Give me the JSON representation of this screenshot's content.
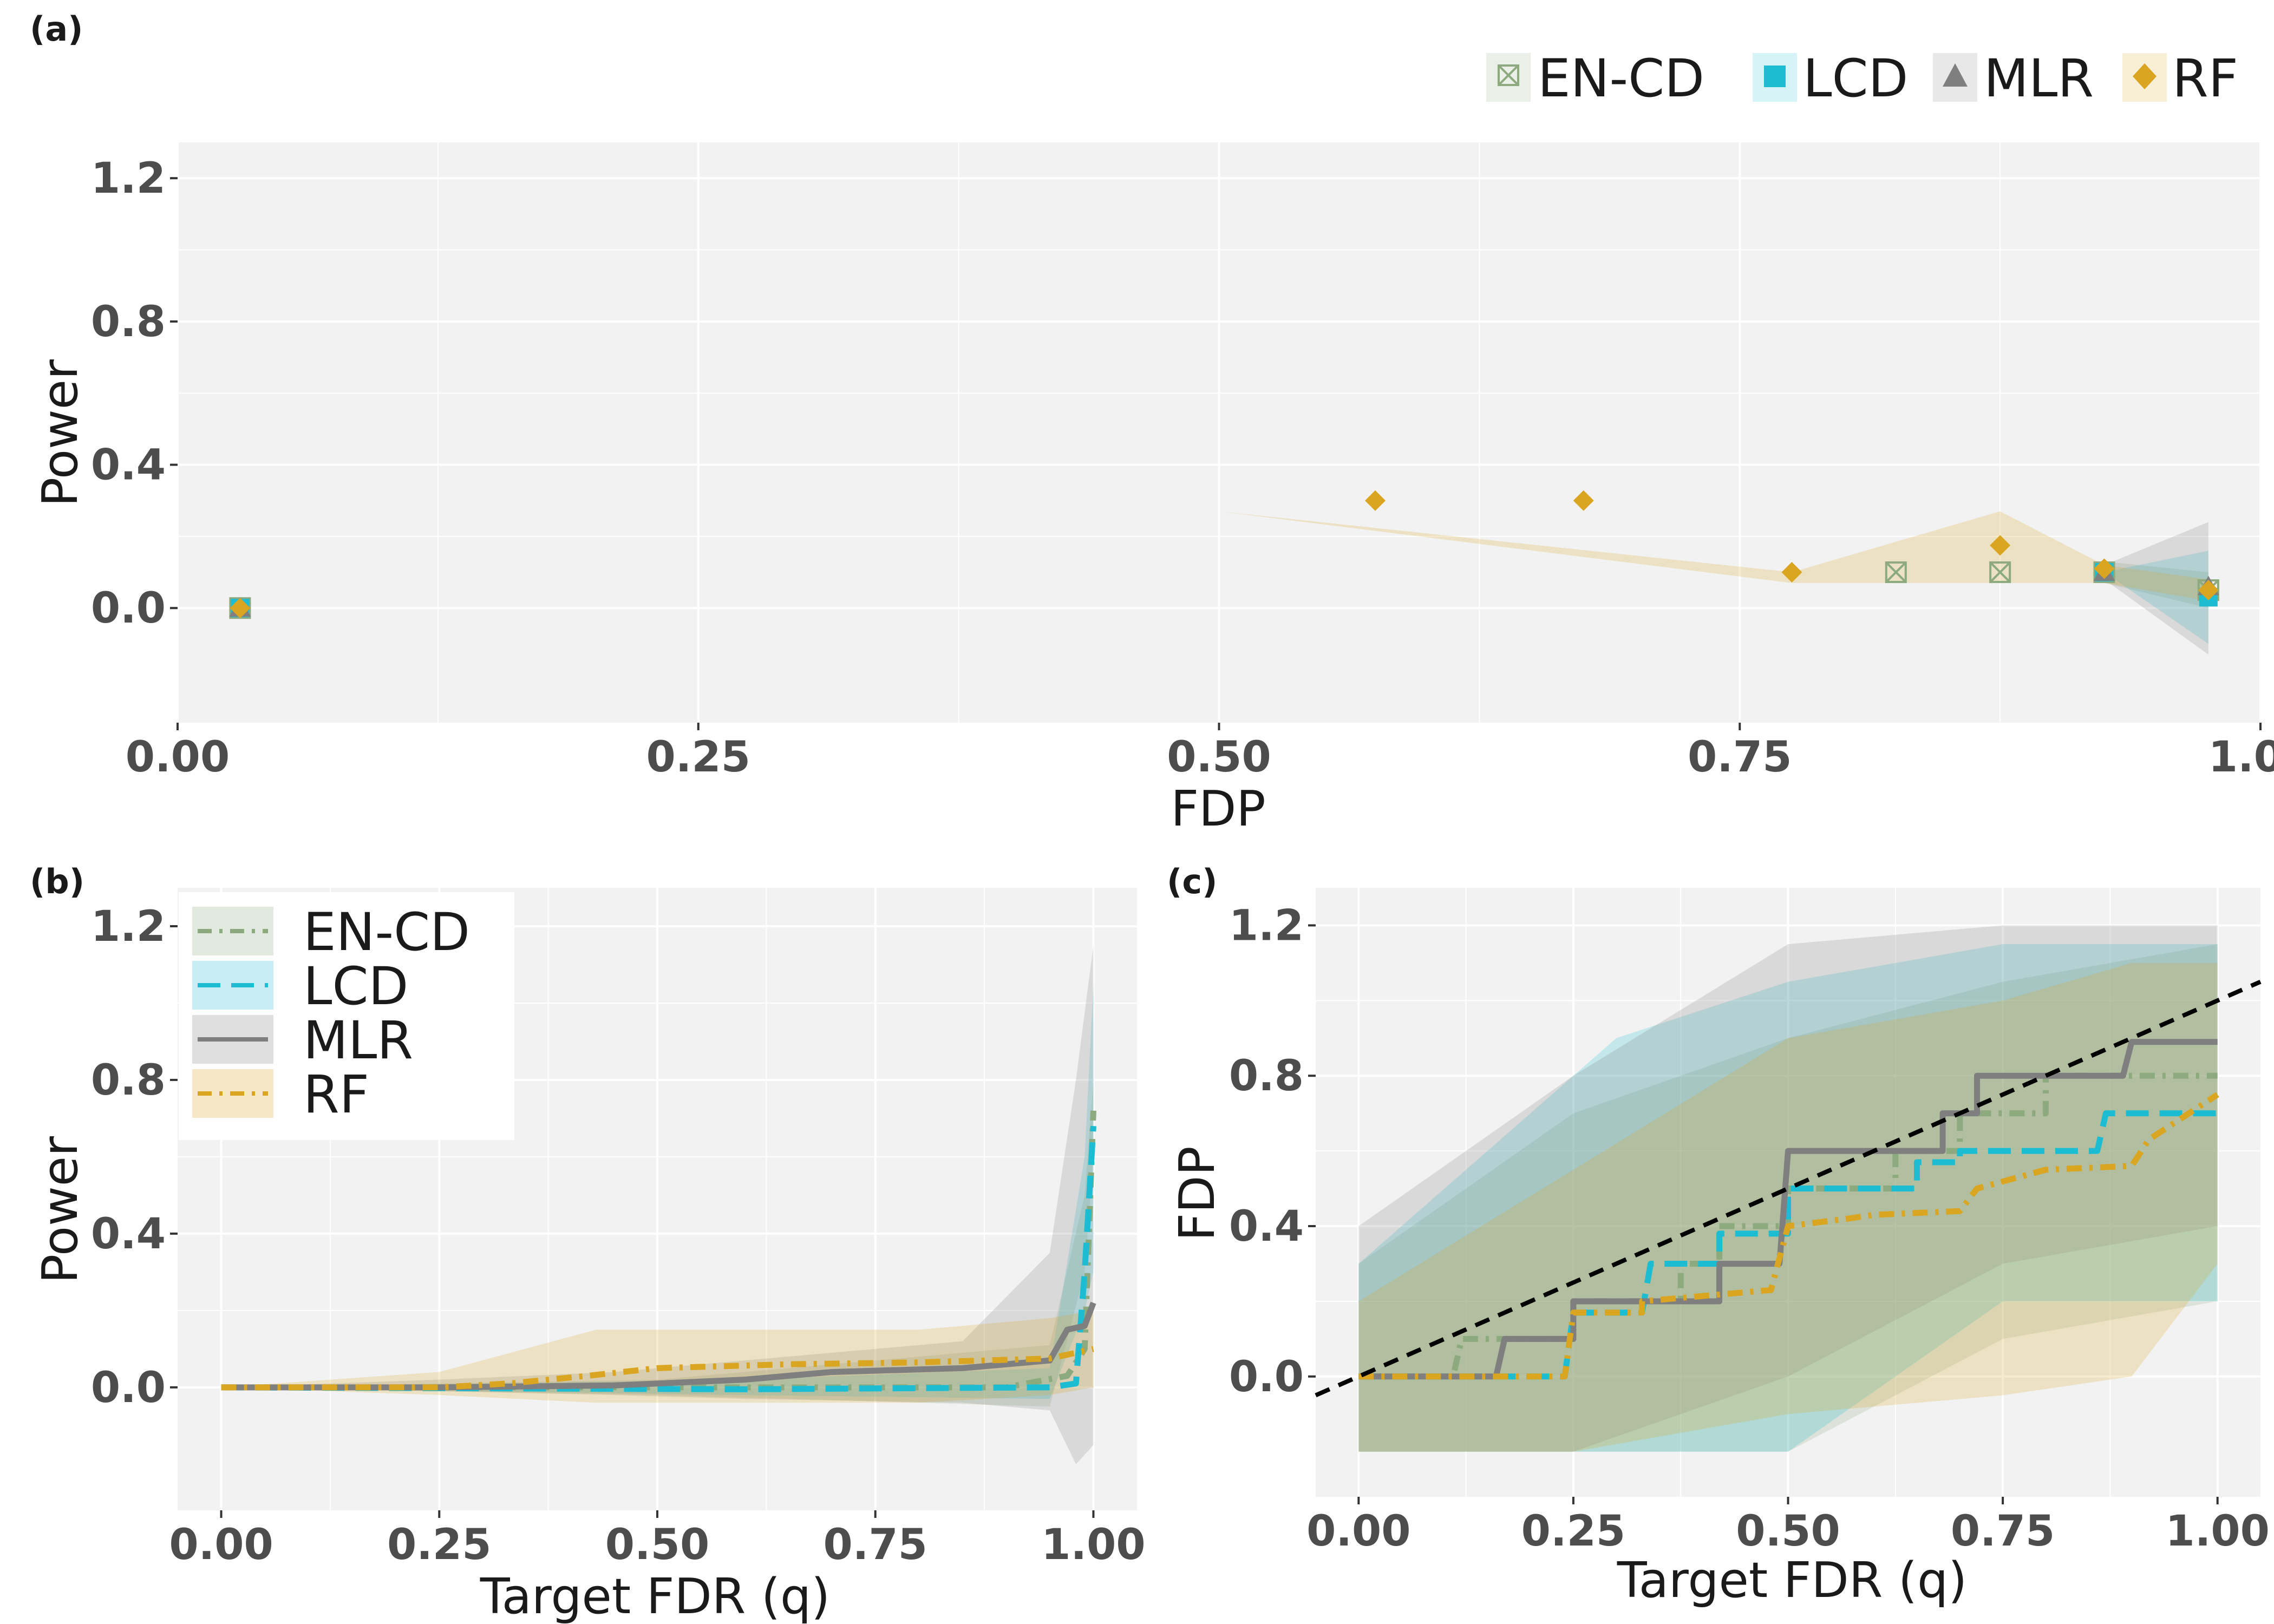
{
  "colors": {
    "EN-CD": "#8DAA7F",
    "LCD": "#1CBDD3",
    "MLR": "#7F7F7F",
    "RF": "#DAA520",
    "panel_bg": "#F2F2F2",
    "grid": "#FFFFFF"
  },
  "legend_top": [
    "EN-CD",
    "LCD",
    "MLR",
    "RF"
  ],
  "chart_data": [
    {
      "panel_label": "(a)",
      "type": "scatter",
      "xlabel": "FDP",
      "ylabel": "Power",
      "xlim": [
        0,
        1
      ],
      "ylim": [
        -0.32,
        1.3
      ],
      "x_ticks": [
        "0.00",
        "0.25",
        "0.50",
        "0.75",
        "1.00"
      ],
      "y_ticks": [
        "0.0",
        "0.4",
        "0.8",
        "1.2"
      ],
      "legend_placement": "top-right",
      "series": [
        {
          "name": "EN-CD",
          "marker": "square-x-icon",
          "points": [
            [
              0.03,
              0.0
            ],
            [
              0.825,
              0.1
            ],
            [
              0.875,
              0.1
            ],
            [
              0.925,
              0.1
            ],
            [
              0.975,
              0.05
            ]
          ],
          "band": [
            [
              0.925,
              0.07,
              0.13
            ],
            [
              0.975,
              0.0,
              0.1
            ]
          ]
        },
        {
          "name": "LCD",
          "marker": "square-icon",
          "points": [
            [
              0.03,
              0.0
            ],
            [
              0.925,
              0.1
            ],
            [
              0.975,
              0.03
            ]
          ],
          "band": [
            [
              0.925,
              0.1,
              0.1
            ],
            [
              0.975,
              -0.1,
              0.16
            ]
          ]
        },
        {
          "name": "MLR",
          "marker": "triangle-icon",
          "points": [
            [
              0.03,
              0.0
            ],
            [
              0.925,
              0.1
            ],
            [
              0.975,
              0.06
            ]
          ],
          "band": [
            [
              0.925,
              0.08,
              0.12
            ],
            [
              0.975,
              -0.13,
              0.24
            ]
          ]
        },
        {
          "name": "RF",
          "marker": "diamond-icon",
          "points": [
            [
              0.03,
              0.0
            ],
            [
              0.575,
              0.3
            ],
            [
              0.675,
              0.3
            ],
            [
              0.775,
              0.1
            ],
            [
              0.875,
              0.175
            ],
            [
              0.925,
              0.11
            ],
            [
              0.975,
              0.05
            ]
          ],
          "band": [
            [
              0.03,
              0.0,
              0.0
            ],
            [
              0.5,
              0.27,
              0.27
            ],
            [
              0.775,
              0.07,
              0.1
            ],
            [
              0.875,
              0.07,
              0.27
            ],
            [
              0.925,
              0.07,
              0.12
            ],
            [
              0.975,
              0.02,
              0.08
            ]
          ]
        }
      ]
    },
    {
      "panel_label": "(b)",
      "type": "line",
      "xlabel": "Target FDR (q)",
      "ylabel": "Power",
      "xlim": [
        -0.05,
        1.05
      ],
      "ylim": [
        -0.32,
        1.3
      ],
      "x_ticks": [
        "0.00",
        "0.25",
        "0.50",
        "0.75",
        "1.00"
      ],
      "y_ticks": [
        "0.0",
        "0.4",
        "0.8",
        "1.2"
      ],
      "legend_placement": "top-left",
      "series": [
        {
          "name": "EN-CD",
          "dash": "dot-dash",
          "points": [
            [
              0,
              0
            ],
            [
              0.5,
              0
            ],
            [
              0.9,
              0.0
            ],
            [
              0.97,
              0.03
            ],
            [
              0.99,
              0.1
            ],
            [
              1.0,
              0.72
            ]
          ],
          "band": [
            [
              0,
              0,
              0
            ],
            [
              0.5,
              -0.02,
              0.02
            ],
            [
              0.95,
              -0.05,
              0.11
            ],
            [
              0.99,
              0.3,
              0.5
            ],
            [
              1.0,
              0.6,
              0.8
            ]
          ]
        },
        {
          "name": "LCD",
          "dash": "long-dash",
          "points": [
            [
              0,
              0
            ],
            [
              0.6,
              -0.005
            ],
            [
              0.95,
              0.0
            ],
            [
              0.98,
              0.01
            ],
            [
              0.99,
              0.3
            ],
            [
              1.0,
              0.68
            ]
          ],
          "band": [
            [
              0,
              0,
              0
            ],
            [
              0.6,
              -0.02,
              0.02
            ],
            [
              0.95,
              -0.03,
              0.05
            ],
            [
              0.99,
              0.2,
              0.6
            ],
            [
              1.0,
              0.3,
              1.05
            ]
          ]
        },
        {
          "name": "MLR",
          "dash": "solid",
          "points": [
            [
              0,
              0
            ],
            [
              0.25,
              0
            ],
            [
              0.45,
              0.005
            ],
            [
              0.6,
              0.02
            ],
            [
              0.7,
              0.04
            ],
            [
              0.85,
              0.05
            ],
            [
              0.95,
              0.07
            ],
            [
              0.97,
              0.15
            ],
            [
              0.99,
              0.16
            ],
            [
              1.0,
              0.22
            ]
          ],
          "band": [
            [
              0,
              0,
              0
            ],
            [
              0.25,
              -0.01,
              0.02
            ],
            [
              0.45,
              -0.02,
              0.04
            ],
            [
              0.6,
              -0.03,
              0.07
            ],
            [
              0.85,
              -0.04,
              0.12
            ],
            [
              0.95,
              -0.06,
              0.35
            ],
            [
              0.98,
              -0.2,
              0.8
            ],
            [
              1.0,
              -0.15,
              1.15
            ]
          ]
        },
        {
          "name": "RF",
          "dash": "dot-dash",
          "points": [
            [
              0,
              0
            ],
            [
              0.25,
              0
            ],
            [
              0.33,
              0.01
            ],
            [
              0.42,
              0.03
            ],
            [
              0.5,
              0.05
            ],
            [
              0.65,
              0.06
            ],
            [
              0.8,
              0.065
            ],
            [
              0.95,
              0.075
            ],
            [
              1.0,
              0.1
            ]
          ],
          "band": [
            [
              0,
              0,
              0
            ],
            [
              0.25,
              -0.02,
              0.04
            ],
            [
              0.43,
              -0.04,
              0.15
            ],
            [
              0.8,
              -0.04,
              0.15
            ],
            [
              0.95,
              -0.02,
              0.18
            ],
            [
              1.0,
              0.0,
              0.2
            ]
          ]
        }
      ]
    },
    {
      "panel_label": "(c)",
      "type": "line",
      "xlabel": "Target FDR (q)",
      "ylabel": "FDP",
      "xlim": [
        -0.05,
        1.05
      ],
      "ylim": [
        -0.32,
        1.3
      ],
      "x_ticks": [
        "0.00",
        "0.25",
        "0.50",
        "0.75",
        "1.00"
      ],
      "y_ticks": [
        "0.0",
        "0.4",
        "0.8",
        "1.2"
      ],
      "reference_line": {
        "slope": 1,
        "intercept": 0,
        "style": "dashed",
        "color": "#000000"
      },
      "series": [
        {
          "name": "EN-CD",
          "dash": "dot-dash",
          "points": [
            [
              0,
              0
            ],
            [
              0.11,
              0
            ],
            [
              0.12,
              0.1
            ],
            [
              0.25,
              0.1
            ],
            [
              0.25,
              0.2
            ],
            [
              0.375,
              0.2
            ],
            [
              0.375,
              0.3
            ],
            [
              0.42,
              0.3
            ],
            [
              0.42,
              0.4
            ],
            [
              0.5,
              0.4
            ],
            [
              0.5,
              0.5
            ],
            [
              0.625,
              0.5
            ],
            [
              0.625,
              0.6
            ],
            [
              0.7,
              0.6
            ],
            [
              0.7,
              0.7
            ],
            [
              0.8,
              0.7
            ],
            [
              0.8,
              0.8
            ],
            [
              1.0,
              0.8
            ]
          ],
          "band": [
            [
              0,
              -0.2,
              0.3
            ],
            [
              0.25,
              -0.2,
              0.7
            ],
            [
              0.5,
              -0.2,
              0.9
            ],
            [
              0.75,
              0.1,
              1.05
            ],
            [
              1.0,
              0.2,
              1.15
            ]
          ]
        },
        {
          "name": "LCD",
          "dash": "long-dash",
          "points": [
            [
              0,
              0
            ],
            [
              0.24,
              0
            ],
            [
              0.25,
              0.17
            ],
            [
              0.33,
              0.17
            ],
            [
              0.34,
              0.3
            ],
            [
              0.42,
              0.3
            ],
            [
              0.42,
              0.38
            ],
            [
              0.5,
              0.38
            ],
            [
              0.5,
              0.5
            ],
            [
              0.65,
              0.5
            ],
            [
              0.65,
              0.57
            ],
            [
              0.7,
              0.57
            ],
            [
              0.7,
              0.6
            ],
            [
              0.86,
              0.6
            ],
            [
              0.87,
              0.7
            ],
            [
              1.0,
              0.7
            ]
          ],
          "band": [
            [
              0,
              -0.2,
              0.3
            ],
            [
              0.3,
              -0.2,
              0.9
            ],
            [
              0.5,
              -0.2,
              1.05
            ],
            [
              0.75,
              0.2,
              1.15
            ],
            [
              1.0,
              0.2,
              1.15
            ]
          ]
        },
        {
          "name": "MLR",
          "dash": "solid",
          "points": [
            [
              0,
              0
            ],
            [
              0.16,
              0
            ],
            [
              0.17,
              0.1
            ],
            [
              0.25,
              0.1
            ],
            [
              0.25,
              0.2
            ],
            [
              0.42,
              0.2
            ],
            [
              0.42,
              0.3
            ],
            [
              0.49,
              0.3
            ],
            [
              0.5,
              0.6
            ],
            [
              0.68,
              0.6
            ],
            [
              0.68,
              0.7
            ],
            [
              0.72,
              0.7
            ],
            [
              0.72,
              0.8
            ],
            [
              0.89,
              0.8
            ],
            [
              0.9,
              0.89
            ],
            [
              1.0,
              0.89
            ]
          ],
          "band": [
            [
              0,
              -0.2,
              0.4
            ],
            [
              0.25,
              -0.2,
              0.8
            ],
            [
              0.5,
              0.0,
              1.15
            ],
            [
              0.75,
              0.3,
              1.2
            ],
            [
              1.0,
              0.4,
              1.2
            ]
          ]
        },
        {
          "name": "RF",
          "dash": "dot-dash",
          "points": [
            [
              0,
              0
            ],
            [
              0.24,
              0
            ],
            [
              0.25,
              0.17
            ],
            [
              0.33,
              0.17
            ],
            [
              0.33,
              0.2
            ],
            [
              0.48,
              0.23
            ],
            [
              0.5,
              0.4
            ],
            [
              0.57,
              0.42
            ],
            [
              0.6,
              0.43
            ],
            [
              0.7,
              0.44
            ],
            [
              0.72,
              0.5
            ],
            [
              0.8,
              0.55
            ],
            [
              0.9,
              0.56
            ],
            [
              0.92,
              0.63
            ],
            [
              1.0,
              0.75
            ]
          ],
          "band": [
            [
              0,
              -0.2,
              0.2
            ],
            [
              0.25,
              -0.2,
              0.55
            ],
            [
              0.5,
              -0.1,
              0.9
            ],
            [
              0.75,
              -0.05,
              1.0
            ],
            [
              0.9,
              0.0,
              1.1
            ],
            [
              1.0,
              0.3,
              1.1
            ]
          ]
        }
      ]
    }
  ]
}
